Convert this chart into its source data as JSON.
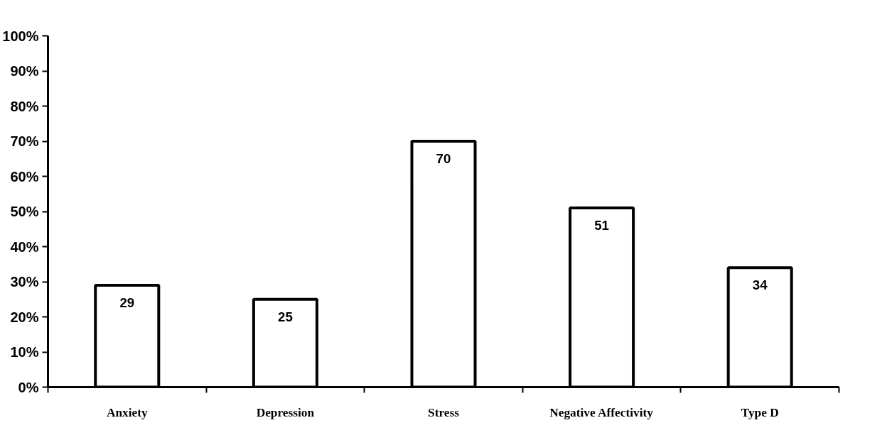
{
  "chart_data": {
    "type": "bar",
    "categories": [
      "Anxiety",
      "Depression",
      "Stress",
      "Negative Affectivity",
      "Type D"
    ],
    "values": [
      29,
      25,
      70,
      51,
      34
    ],
    "color": "#ffffff",
    "ylim": [
      0,
      100
    ],
    "yticks": [
      {
        "value": 0,
        "label": "0%"
      },
      {
        "value": 10,
        "label": "10%"
      },
      {
        "value": 20,
        "label": "20%"
      },
      {
        "value": 30,
        "label": "30%"
      },
      {
        "value": 40,
        "label": "40%"
      },
      {
        "value": 50,
        "label": "50%"
      },
      {
        "value": 60,
        "label": "60%"
      },
      {
        "value": 70,
        "label": "70%"
      },
      {
        "value": 80,
        "label": "80%"
      },
      {
        "value": 90,
        "label": "90%"
      },
      {
        "value": 100,
        "label": "100%"
      }
    ],
    "data_labels": true,
    "grid": false
  }
}
